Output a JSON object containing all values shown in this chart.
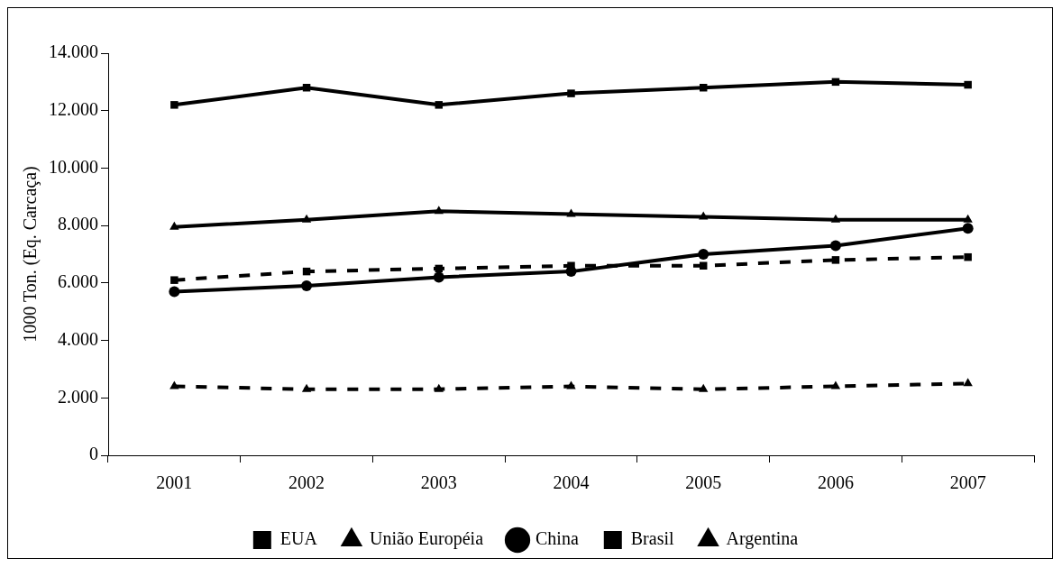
{
  "chart_data": {
    "type": "line",
    "ylabel": "1000 Ton. (Eq. Carcaça)",
    "categories": [
      "2001",
      "2002",
      "2003",
      "2004",
      "2005",
      "2006",
      "2007"
    ],
    "series": [
      {
        "name": "EUA",
        "color": "#000000",
        "marker": "square",
        "line_style": "solid",
        "values": [
          12200,
          12800,
          12200,
          12600,
          12800,
          13000,
          12900
        ]
      },
      {
        "name": "União Européia",
        "color": "#000000",
        "marker": "triangle",
        "line_style": "solid",
        "values": [
          7950,
          8200,
          8500,
          8400,
          8300,
          8200,
          8200
        ]
      },
      {
        "name": "China",
        "color": "#000000",
        "marker": "circle",
        "line_style": "solid",
        "values": [
          5700,
          5900,
          6200,
          6400,
          7000,
          7300,
          7900
        ]
      },
      {
        "name": "Brasil",
        "color": "#000000",
        "marker": "square",
        "line_style": "dashed",
        "values": [
          6100,
          6400,
          6500,
          6600,
          6600,
          6800,
          6900
        ]
      },
      {
        "name": "Argentina",
        "color": "#000000",
        "marker": "triangle",
        "line_style": "dashed",
        "values": [
          2400,
          2300,
          2300,
          2400,
          2300,
          2400,
          2500
        ]
      }
    ],
    "ylim": [
      0,
      14000
    ],
    "yticks": [
      0,
      {
        "value": 2000,
        "label": "2.000"
      },
      {
        "value": 4000,
        "label": "4.000"
      },
      {
        "value": 6000,
        "label": "6.000"
      },
      {
        "value": 8000,
        "label": "8.000"
      },
      {
        "value": 10000,
        "label": "10.000"
      },
      {
        "value": 12000,
        "label": "12.000"
      },
      {
        "value": 14000,
        "label": "14.000"
      }
    ],
    "grid": false,
    "legend": "bottom"
  }
}
